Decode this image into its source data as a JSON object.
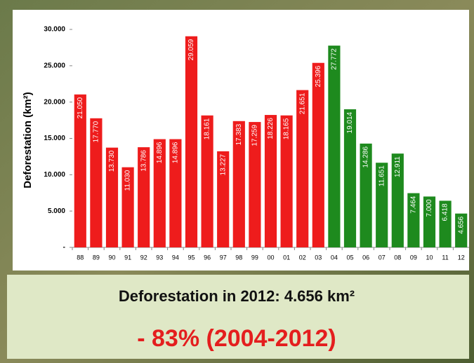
{
  "chart_data": {
    "type": "bar",
    "y_label": "Deforestation (km²)",
    "categories": [
      "88",
      "89",
      "90",
      "91",
      "92",
      "93",
      "94",
      "95",
      "96",
      "97",
      "98",
      "99",
      "00",
      "01",
      "02",
      "03",
      "04",
      "05",
      "06",
      "07",
      "08",
      "09",
      "10",
      "11",
      "12"
    ],
    "values": [
      21050,
      17770,
      13730,
      11030,
      13786,
      14896,
      14896,
      29059,
      18161,
      13227,
      17383,
      17259,
      18226,
      18165,
      21651,
      25396,
      27772,
      19014,
      14286,
      11651,
      12911,
      7464,
      7000,
      6418,
      4656
    ],
    "value_labels": [
      "21.050",
      "17.770",
      "13.730",
      "11.030",
      "13.786",
      "14.896",
      "14.896",
      "29.059",
      "18.161",
      "13.227",
      "17.383",
      "17.259",
      "18.226",
      "18.165",
      "21.651",
      "25.396",
      "27.772",
      "19.014",
      "14.286",
      "11.651",
      "12.911",
      "7.464",
      "7.000",
      "6.418",
      "4.656"
    ],
    "colors": [
      "#ee1c1c",
      "#ee1c1c",
      "#ee1c1c",
      "#ee1c1c",
      "#ee1c1c",
      "#ee1c1c",
      "#ee1c1c",
      "#ee1c1c",
      "#ee1c1c",
      "#ee1c1c",
      "#ee1c1c",
      "#ee1c1c",
      "#ee1c1c",
      "#ee1c1c",
      "#ee1c1c",
      "#ee1c1c",
      "#1e8a1e",
      "#1e8a1e",
      "#1e8a1e",
      "#1e8a1e",
      "#1e8a1e",
      "#1e8a1e",
      "#1e8a1e",
      "#1e8a1e",
      "#1e8a1e"
    ],
    "ylim": [
      0,
      30000
    ],
    "yticks": [
      {
        "value": 0,
        "label": "-"
      },
      {
        "value": 5000,
        "label": "5.000"
      },
      {
        "value": 10000,
        "label": "10.000"
      },
      {
        "value": 15000,
        "label": "15.000"
      },
      {
        "value": 20000,
        "label": "20.000"
      },
      {
        "value": 25000,
        "label": "25.000"
      },
      {
        "value": 30000,
        "label": "30.000"
      }
    ],
    "grid": false,
    "summary": "Deforestation in 2012: 4.656 km²",
    "annotation": "- 83% (2004-2012)"
  }
}
